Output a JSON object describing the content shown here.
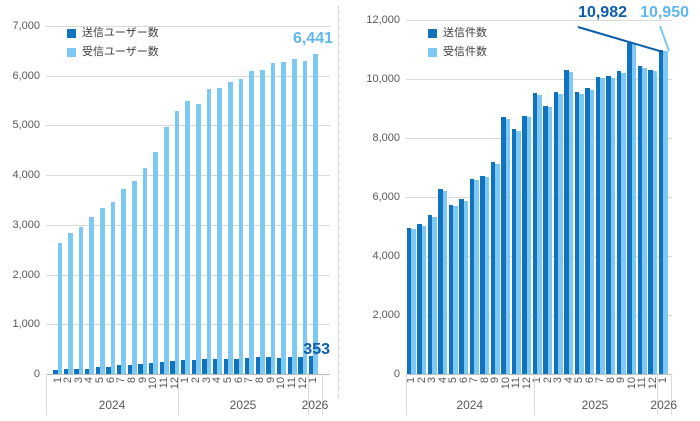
{
  "page": {
    "background": "#FFFFFF"
  },
  "colors": {
    "sent": "#1172BE",
    "received": "#7EC8F4",
    "sent_text": "#0D5EA8",
    "received_text": "#5FB7F0",
    "grid": "#D9D9D9",
    "axis": "#BFBFBF",
    "tick_text": "#595959",
    "legend_text": "#404040",
    "divider": "#C9C9C9"
  },
  "chart_data": [
    {
      "type": "bar",
      "title": "",
      "legend_position": "top-left",
      "grid": true,
      "ylim": [
        0,
        7000
      ],
      "y_tick_step": 1000,
      "y_tick_labels": [
        "7,000",
        "6,000",
        "5,000",
        "4,000",
        "3,000",
        "2,000",
        "1,000",
        "0"
      ],
      "categories": [
        "1",
        "2",
        "3",
        "4",
        "5",
        "6",
        "7",
        "8",
        "9",
        "10",
        "11",
        "12",
        "1",
        "2",
        "3",
        "4",
        "5",
        "6",
        "7",
        "8",
        "9",
        "10",
        "11",
        "12",
        "1"
      ],
      "year_groups": [
        {
          "label": "2024",
          "months": 12
        },
        {
          "label": "2025",
          "months": 12
        },
        {
          "label": "2026",
          "months": 1
        }
      ],
      "series": [
        {
          "name": "送信ユーザー数",
          "color_key": "sent",
          "values": [
            80,
            95,
            105,
            110,
            135,
            145,
            175,
            190,
            200,
            230,
            240,
            270,
            280,
            280,
            295,
            295,
            295,
            310,
            315,
            335,
            335,
            320,
            350,
            335,
            353
          ]
        },
        {
          "name": "受信ユーザー数",
          "color_key": "received",
          "values": [
            2630,
            2830,
            2950,
            3160,
            3330,
            3460,
            3730,
            3880,
            4140,
            4470,
            4970,
            5290,
            5490,
            5440,
            5740,
            5760,
            5870,
            5940,
            6100,
            6110,
            6260,
            6270,
            6330,
            6300,
            6441
          ]
        }
      ],
      "annotations": [
        {
          "text": "6,441",
          "series": "受信ユーザー数",
          "point": "2026-1"
        },
        {
          "text": "353",
          "series": "送信ユーザー数",
          "point": "2026-1"
        }
      ]
    },
    {
      "type": "bar",
      "title": "",
      "legend_position": "top-left",
      "grid": true,
      "ylim": [
        0,
        12000
      ],
      "y_tick_step": 2000,
      "y_tick_labels": [
        "12,000",
        "10,000",
        "8,000",
        "6,000",
        "4,000",
        "2,000",
        "0"
      ],
      "categories": [
        "1",
        "2",
        "3",
        "4",
        "5",
        "6",
        "7",
        "8",
        "9",
        "10",
        "11",
        "12",
        "1",
        "2",
        "3",
        "4",
        "5",
        "6",
        "7",
        "8",
        "9",
        "10",
        "11",
        "12",
        "1"
      ],
      "year_groups": [
        {
          "label": "2024",
          "months": 12
        },
        {
          "label": "2025",
          "months": 12
        },
        {
          "label": "2026",
          "months": 1
        }
      ],
      "series": [
        {
          "name": "送信件数",
          "color_key": "sent",
          "values": [
            4950,
            5080,
            5380,
            6270,
            5730,
            5930,
            6610,
            6720,
            7170,
            8700,
            8300,
            8750,
            9520,
            9090,
            9550,
            10300,
            9550,
            9680,
            10080,
            10090,
            10270,
            11230,
            10430,
            10320,
            10982
          ]
        },
        {
          "name": "受信件数",
          "color_key": "received",
          "values": [
            4900,
            5030,
            5330,
            6220,
            5680,
            5880,
            6560,
            6670,
            7120,
            8650,
            8250,
            8700,
            9470,
            9040,
            9500,
            10250,
            9500,
            9630,
            10030,
            10040,
            10220,
            11180,
            10380,
            10270,
            10950
          ]
        }
      ],
      "annotations": [
        {
          "text": "10,982",
          "series": "送信件数",
          "point": "2026-1"
        },
        {
          "text": "10,950",
          "series": "受信件数",
          "point": "2026-1"
        }
      ]
    }
  ]
}
